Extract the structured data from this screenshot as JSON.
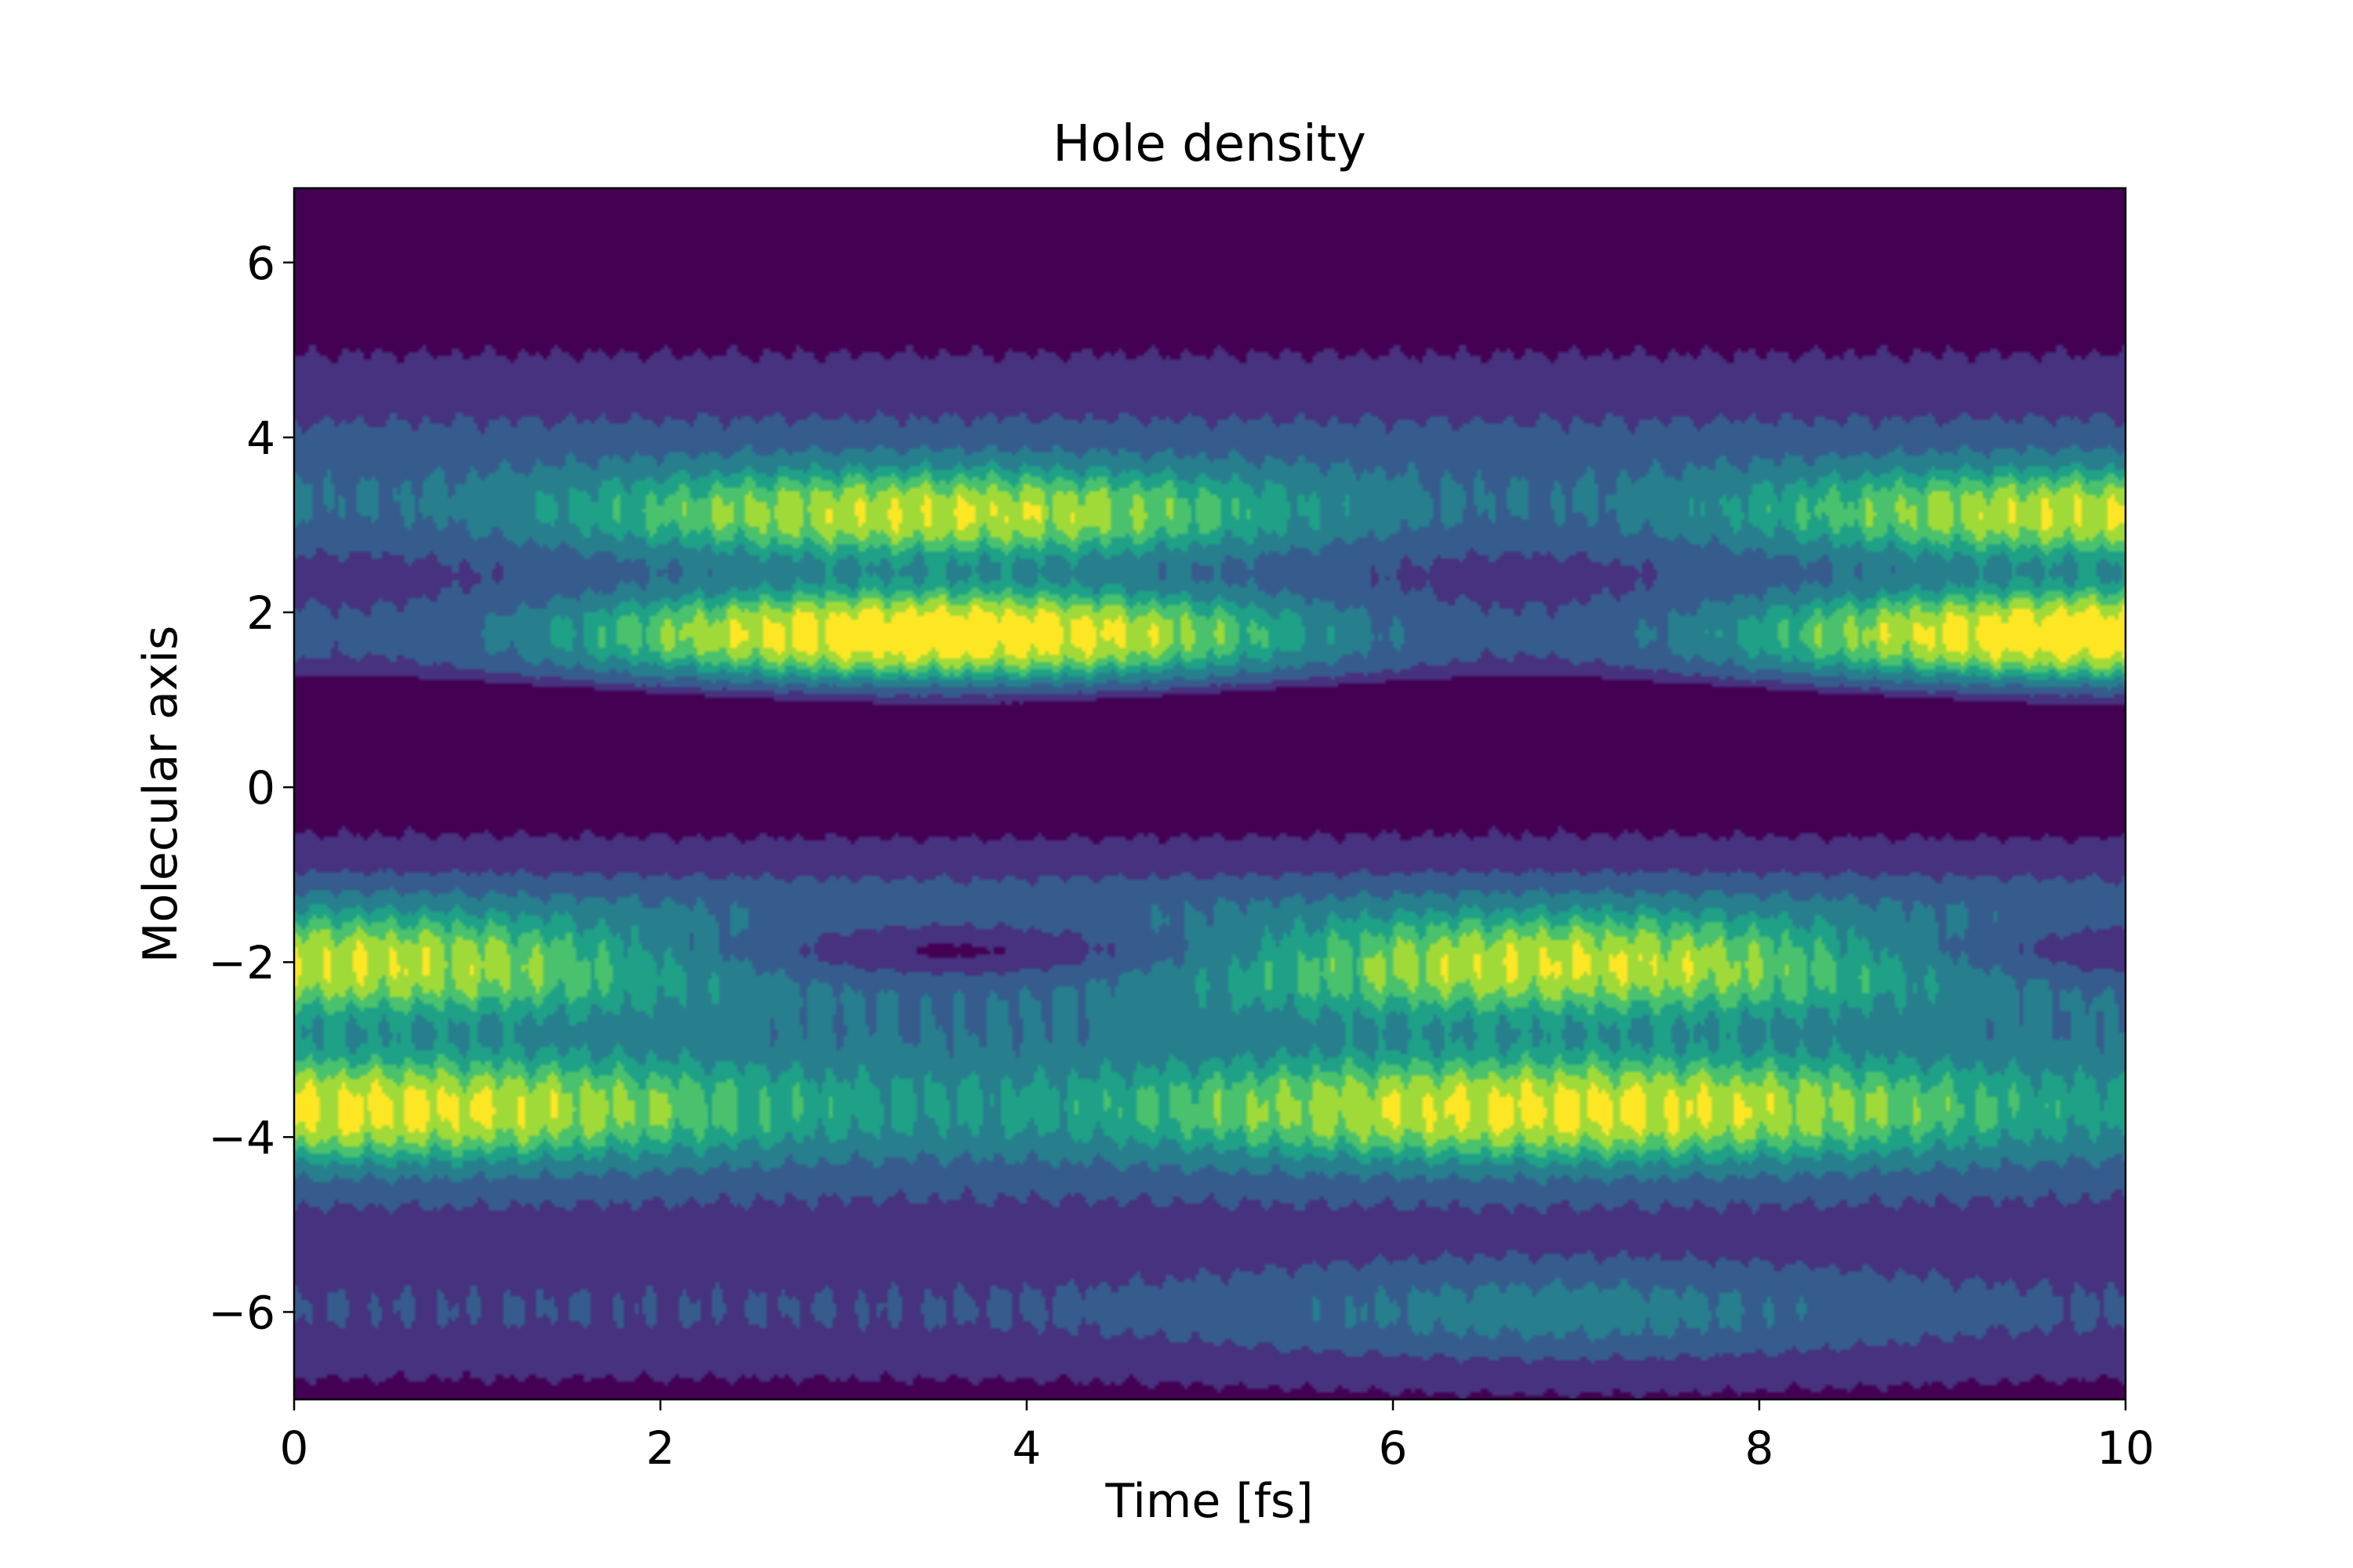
{
  "chart_data": {
    "type": "heatmap",
    "style": "filled-contour",
    "colormap": "viridis",
    "title": "Hole density",
    "xlabel": "Time [fs]",
    "ylabel": "Molecular axis",
    "xlim": [
      0,
      10
    ],
    "ylim": [
      -7,
      6.85
    ],
    "grid": false,
    "x_ticks": [
      0,
      2,
      4,
      6,
      8,
      10
    ],
    "y_ticks": [
      -6,
      -4,
      -2,
      0,
      2,
      4,
      6
    ],
    "x_tick_labels": [
      "0",
      "2",
      "4",
      "6",
      "8",
      "10"
    ],
    "y_tick_labels": [
      "−6",
      "−4",
      "−2",
      "0",
      "2",
      "4",
      "6"
    ],
    "levels": [
      "#440154",
      "#46327e",
      "#365c8d",
      "#277f8e",
      "#1fa187",
      "#4ac16d",
      "#a0da39",
      "#fde725"
    ],
    "density_regions": [
      {
        "feature": "upper-lobe-2",
        "x_range": [
          0,
          10
        ],
        "y_center": 1.75,
        "peak_times": [
          3.5,
          9.9
        ],
        "peak_level": 7
      },
      {
        "feature": "upper-lobe-3",
        "x_range": [
          0,
          10
        ],
        "y_center": 3.1,
        "peak_times": [
          3.4,
          9.6
        ],
        "peak_level": 5
      },
      {
        "feature": "lower-lobe-2",
        "x_range": [
          0,
          10
        ],
        "y_center": -2.0,
        "peak_times": [
          0.2,
          6.9
        ],
        "peak_level": 5
      },
      {
        "feature": "lower-lobe-4",
        "x_range": [
          0,
          10
        ],
        "y_center": -3.7,
        "peak_times": [
          0.3,
          7.0
        ],
        "peak_level": 5
      },
      {
        "feature": "lower-edge",
        "x_range": [
          0,
          10
        ],
        "y_center": -6.0,
        "peak_times": [
          6.9
        ],
        "peak_level": 3
      },
      {
        "feature": "minimum-1",
        "x_range": [
          0,
          10
        ],
        "y_center": 0.85,
        "min_times": [
          0.4,
          7.0
        ],
        "min_level": 0
      },
      {
        "feature": "minimum-0",
        "x_range": [
          0,
          10
        ],
        "y_center": 0.0,
        "min_times": [
          3.6,
          9.9
        ],
        "min_level": 0
      },
      {
        "feature": "minimum-neg2",
        "x_range": [
          0,
          10
        ],
        "y_center": -1.9,
        "min_times": [
          3.6,
          9.9
        ],
        "min_level": 0
      }
    ]
  }
}
